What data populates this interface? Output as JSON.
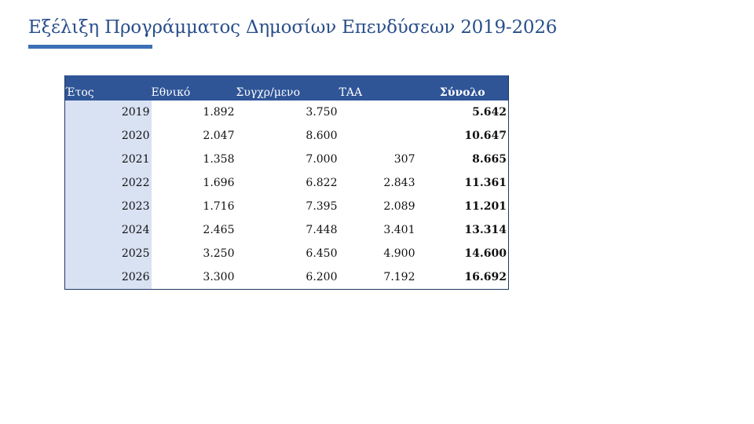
{
  "slide": {
    "title": "Εξέλιξη Προγράμματος Δημοσίων Επενδύσεων 2019-2026"
  },
  "table": {
    "headers": [
      "Έτος",
      "Εθνικό",
      "Συγχρ/μενο",
      "ΤΑΑ",
      "Σύνολο"
    ],
    "rows": [
      [
        "2019",
        "1.892",
        "3.750",
        "",
        "5.642"
      ],
      [
        "2020",
        "2.047",
        "8.600",
        "",
        "10.647"
      ],
      [
        "2021",
        "1.358",
        "7.000",
        "307",
        "8.665"
      ],
      [
        "2022",
        "1.696",
        "6.822",
        "2.843",
        "11.361"
      ],
      [
        "2023",
        "1.716",
        "7.395",
        "2.089",
        "11.201"
      ],
      [
        "2024",
        "2.465",
        "7.448",
        "3.401",
        "13.314"
      ],
      [
        "2025",
        "3.250",
        "6.450",
        "4.900",
        "14.600"
      ],
      [
        "2026",
        "3.300",
        "6.200",
        "7.192",
        "16.692"
      ]
    ]
  },
  "colors": {
    "title": "#2a4f8b",
    "accent_underline": "#3c6fb6",
    "header_bg": "#2f5597",
    "year_column_bg": "#d9e2f3"
  }
}
